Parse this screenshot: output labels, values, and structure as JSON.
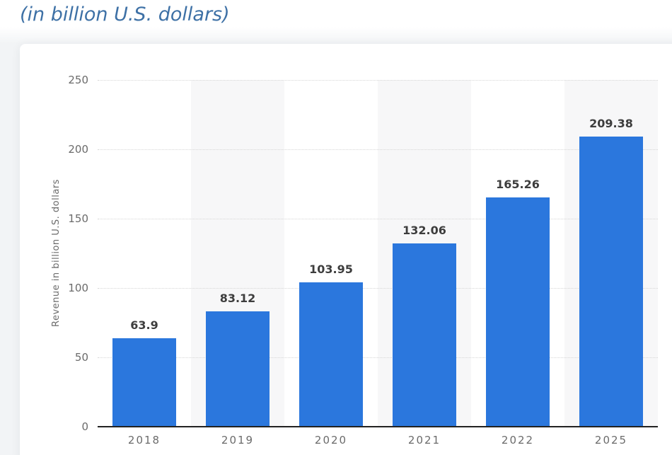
{
  "page": {
    "title": "(in billion U.S. dollars)"
  },
  "chart_data": {
    "type": "bar",
    "title": "(in billion U.S. dollars)",
    "categories": [
      "2018",
      "2019",
      "2020",
      "2021",
      "2022",
      "2025"
    ],
    "values": [
      63.9,
      83.12,
      103.95,
      132.06,
      165.26,
      209.38
    ],
    "value_labels": [
      "63.9",
      "83.12",
      "103.95",
      "132.06",
      "165.26",
      "209.38"
    ],
    "xlabel": "",
    "ylabel": "Revenue in billion U.S. dollars",
    "ylim": [
      0,
      250
    ],
    "yticks": [
      0,
      50,
      100,
      150,
      200,
      250
    ],
    "grid": "horizontal dotted lines",
    "legend": "none",
    "plot_bands": "alternating vertical column shading on 2019, 2021, 2025 columns"
  },
  "colors": {
    "bar_color": "#2b77dd",
    "band_color": "#f7f7f8",
    "grid_color": "#d6d6d6",
    "axis_line_color": "#222222",
    "axis_text_color": "#6b6b6b",
    "value_label_color": "#3d3d3d",
    "title_color": "#3e71a6",
    "card_bg": "#ffffff",
    "page_bg": "#f2f4f6",
    "page_top_bg": "#ffffff"
  }
}
